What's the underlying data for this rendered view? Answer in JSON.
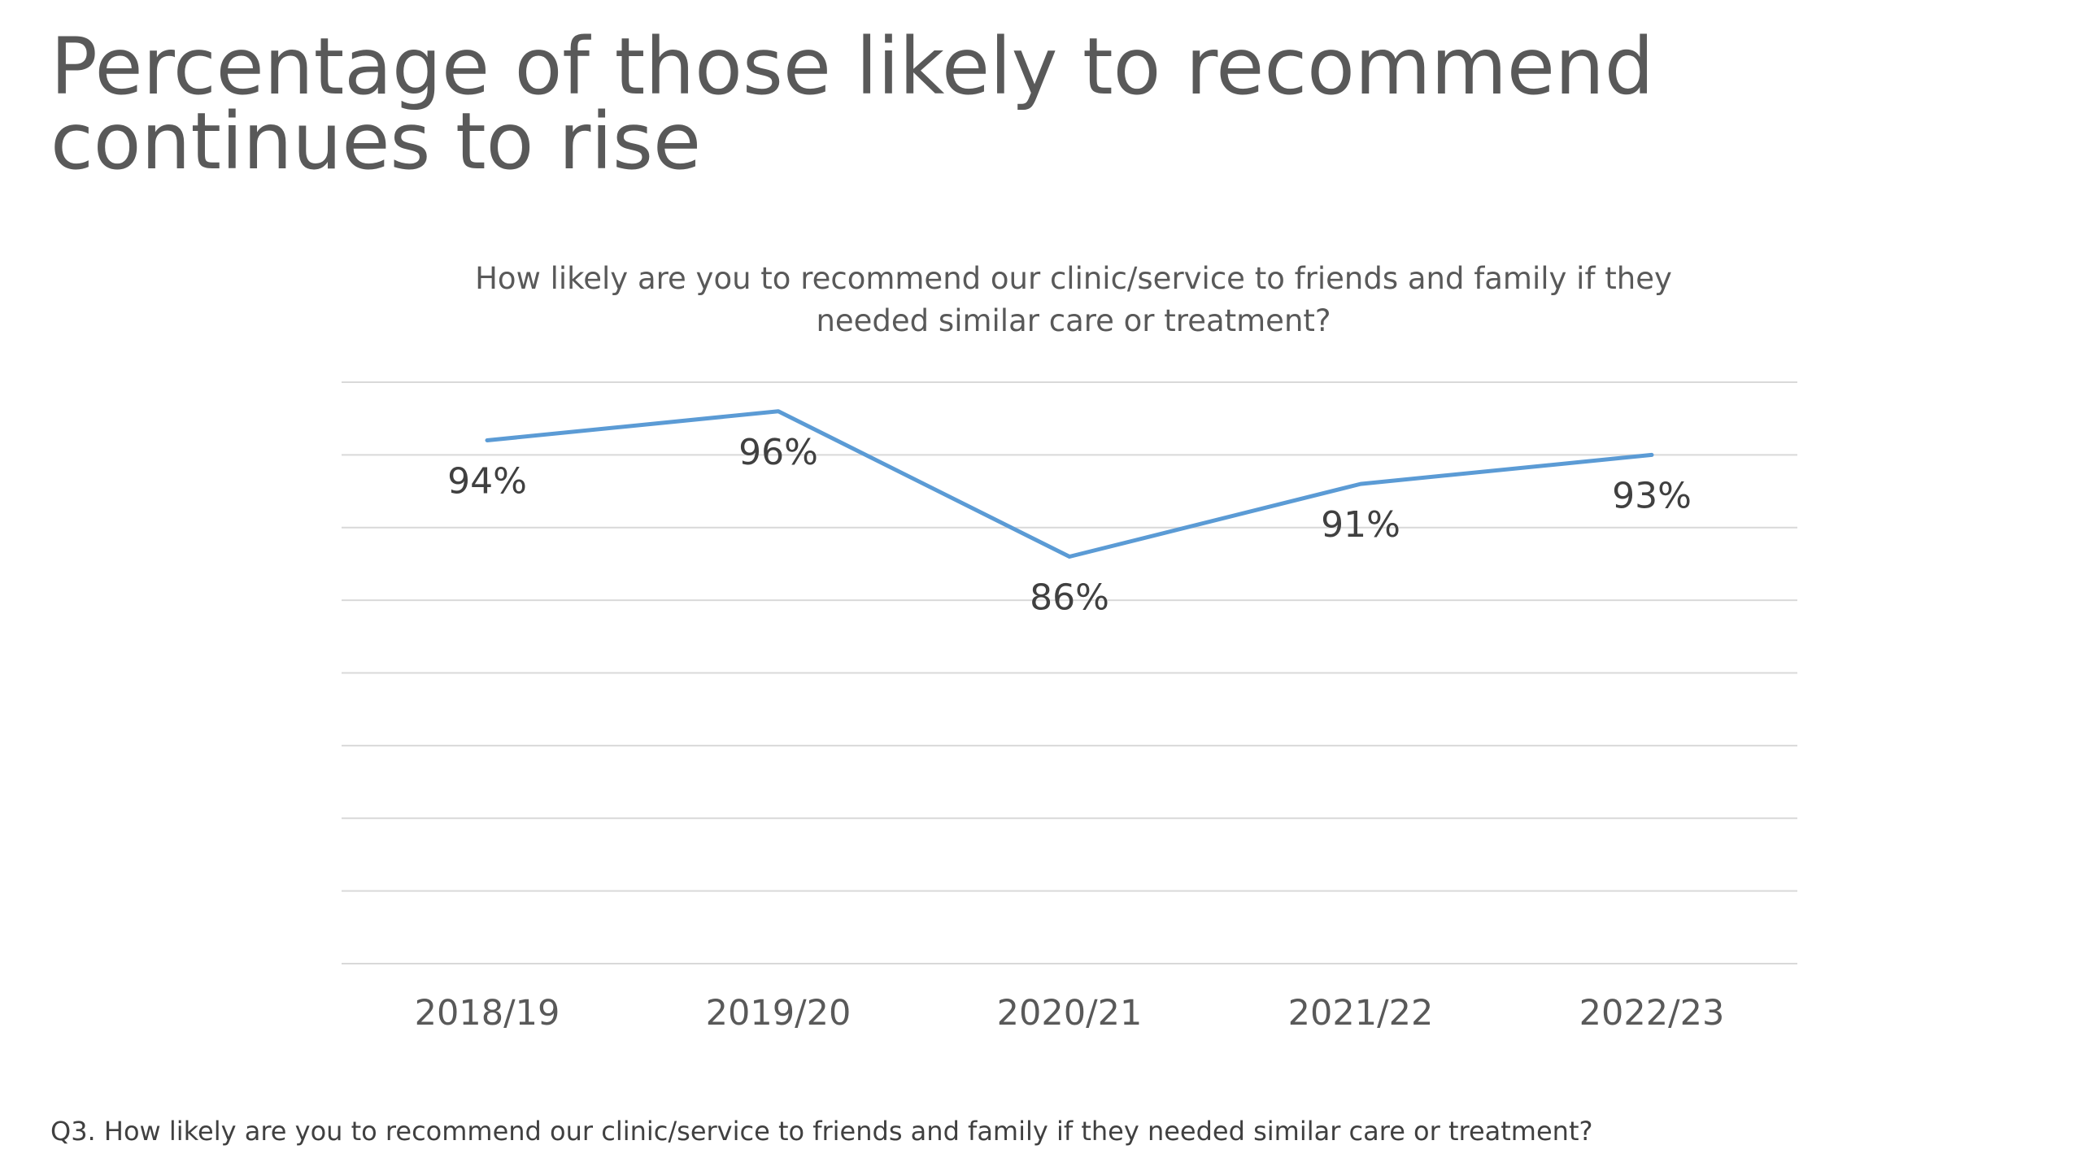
{
  "slide": {
    "title": "Percentage of those likely to recommend continues to rise",
    "footnote": "Q3. How likely are you to recommend our clinic/service to friends and family if they needed similar care or treatment?"
  },
  "chart_data": {
    "type": "line",
    "title_lines": [
      "How likely are you to recommend our clinic/service to friends and family if they",
      "needed similar care or treatment?"
    ],
    "categories": [
      "2018/19",
      "2019/20",
      "2020/21",
      "2021/22",
      "2022/23"
    ],
    "series": [
      {
        "values": [
          94,
          96,
          86,
          91,
          93
        ],
        "data_labels": [
          "94%",
          "96%",
          "86%",
          "91%",
          "93%"
        ],
        "color": "#5b9bd5"
      }
    ],
    "ylim": [
      58,
      98
    ],
    "grid": true,
    "gridline_interval": 5,
    "legend": "none",
    "label_placement": [
      "below",
      "below",
      "below",
      "below",
      "below"
    ]
  }
}
